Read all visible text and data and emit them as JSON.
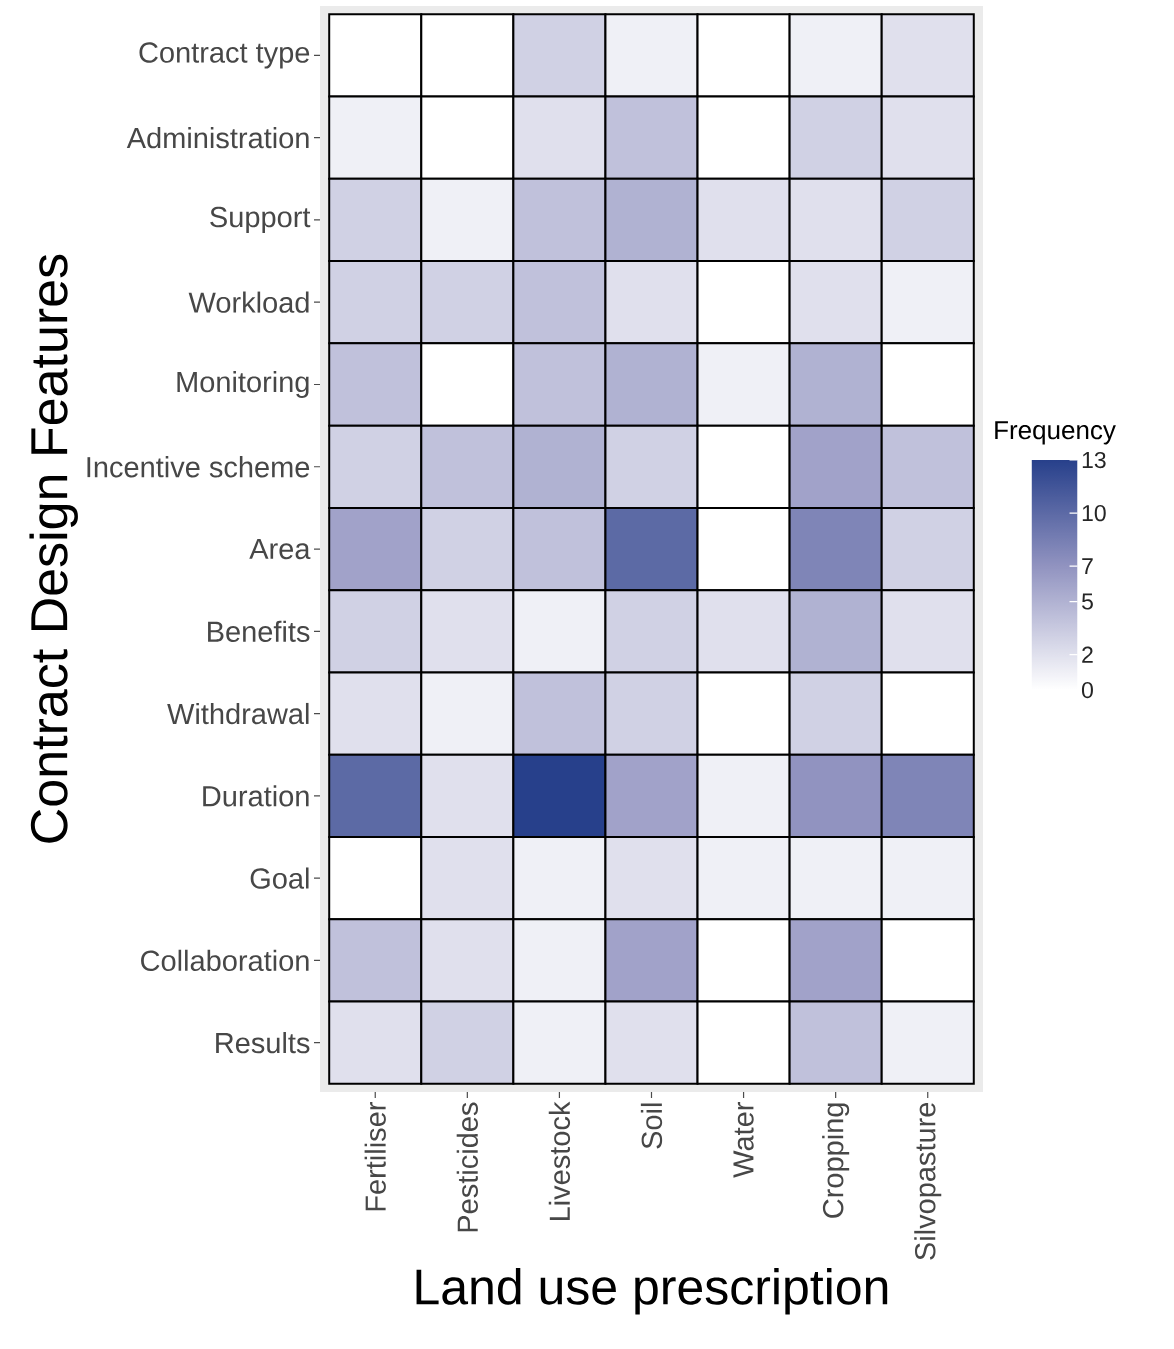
{
  "chart_data": {
    "type": "heatmap",
    "xlabel": "Land use prescription",
    "ylabel": "Contract Design Features",
    "clabel": "Frequency",
    "categories": [
      "Fertiliser",
      "Pesticides",
      "Livestock",
      "Soil",
      "Water",
      "Cropping",
      "Silvopasture"
    ],
    "y_categories": [
      "Contract type",
      "Administration",
      "Support",
      "Workload",
      "Monitoring",
      "Incentive scheme",
      "Area",
      "Benefits",
      "Withdrawal",
      "Duration",
      "Goal",
      "Collaboration",
      "Results"
    ],
    "cells": [
      [
        0,
        0,
        3,
        1,
        0,
        1,
        2
      ],
      [
        1,
        0,
        2,
        4,
        0,
        3,
        2
      ],
      [
        3,
        1,
        4,
        5,
        2,
        2,
        3
      ],
      [
        3,
        3,
        4,
        2,
        0,
        2,
        1
      ],
      [
        4,
        0,
        4,
        5,
        1,
        5,
        0
      ],
      [
        3,
        4,
        5,
        3,
        0,
        6,
        4
      ],
      [
        6,
        3,
        4,
        10,
        0,
        8,
        3
      ],
      [
        3,
        2,
        1,
        3,
        2,
        5,
        2
      ],
      [
        2,
        1,
        4,
        3,
        0,
        3,
        0
      ],
      [
        10,
        2,
        13,
        6,
        1,
        7,
        8
      ],
      [
        0,
        2,
        1,
        2,
        1,
        1,
        1
      ],
      [
        4,
        2,
        1,
        6,
        0,
        6,
        0
      ],
      [
        2,
        3,
        1,
        2,
        0,
        4,
        1
      ]
    ],
    "clim": [
      0,
      13
    ],
    "cticks": [
      0,
      2,
      5,
      7,
      10,
      13
    ]
  }
}
